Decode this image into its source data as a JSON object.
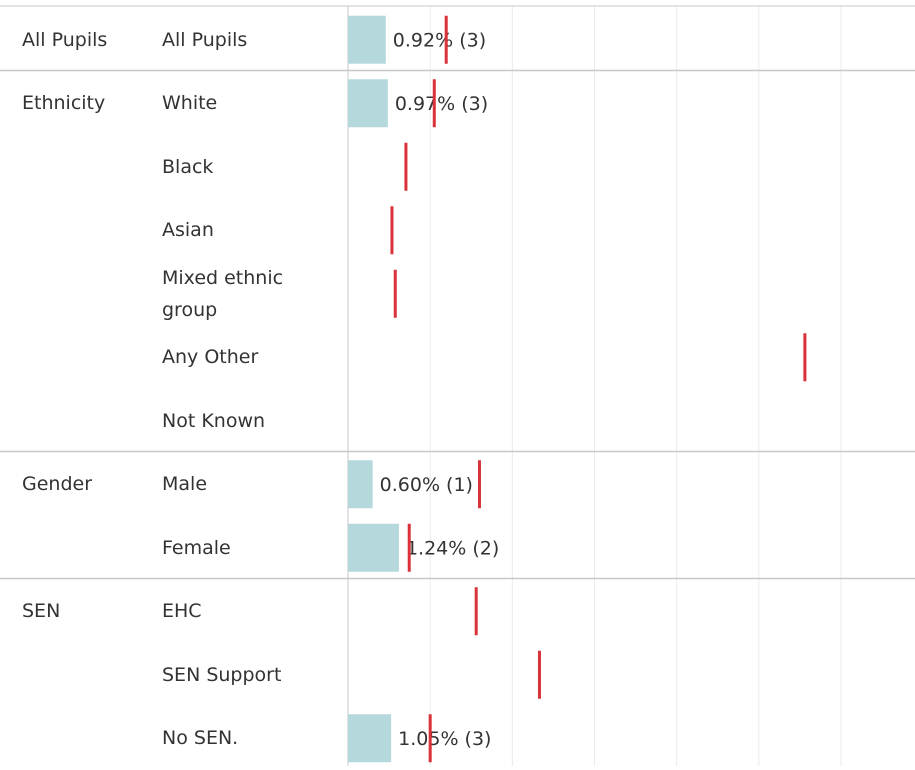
{
  "chart_data": {
    "type": "bar",
    "orientation": "horizontal",
    "group_labels": [
      "All Pupils",
      "Ethnicity",
      null,
      null,
      null,
      null,
      null,
      "Gender",
      null,
      "SEN",
      null,
      null
    ],
    "categories": [
      "All Pupils",
      "White",
      "Black",
      "Asian",
      "Mixed ethnic group",
      "Any Other",
      "Not Known",
      "Male",
      "Female",
      "EHC",
      "SEN Support",
      "No SEN."
    ],
    "values": [
      0.92,
      0.97,
      null,
      null,
      null,
      null,
      null,
      0.6,
      1.24,
      null,
      null,
      1.05
    ],
    "value_labels": [
      "0.92% (3)",
      "0.97% (3)",
      null,
      null,
      null,
      null,
      null,
      "0.60% (1)",
      "1.24% (2)",
      null,
      null,
      "1.05% (3)"
    ],
    "color": "#b5d8dd",
    "reference_values": [
      2.39,
      2.1,
      1.41,
      1.07,
      1.15,
      11.12,
      null,
      3.2,
      1.49,
      3.12,
      4.66,
      2.0
    ],
    "reference_color": "#d9323a",
    "xlim": [
      0,
      13.8
    ],
    "xgrid": [
      0,
      2,
      4,
      6,
      8,
      10,
      12
    ],
    "grid": true
  }
}
